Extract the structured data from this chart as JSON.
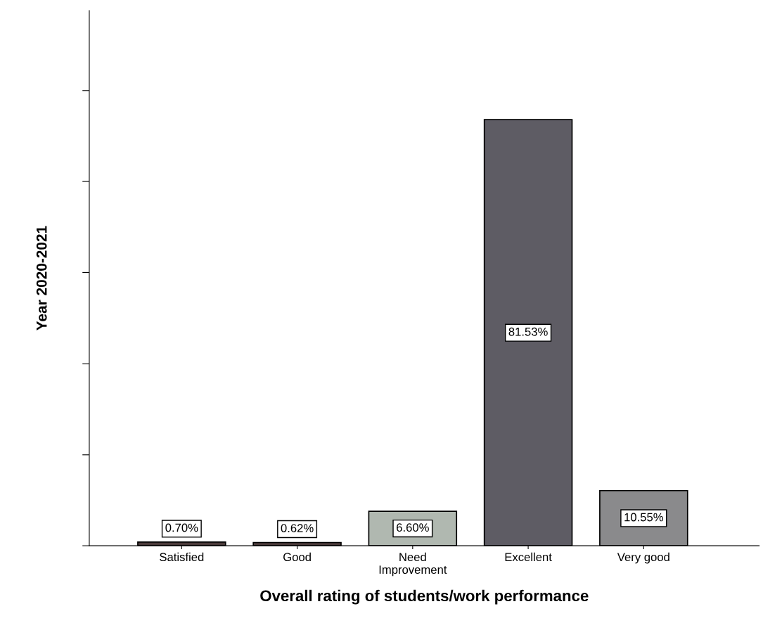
{
  "chart_data": {
    "type": "bar",
    "xlabel": "Overall rating of students/work performance",
    "ylabel": "Year 2020-2021",
    "categories": [
      "Satisfied",
      "Good",
      "Need\nImprovement",
      "Excellent",
      "Very good"
    ],
    "values": [
      0.7,
      0.62,
      6.6,
      81.53,
      10.55
    ],
    "value_labels": [
      "0.70%",
      "0.62%",
      "6.60%",
      "81.53%",
      "10.55%"
    ],
    "colors": [
      "#4a3a3a",
      "#4a3a3a",
      "#b0b8b0",
      "#5e5c64",
      "#8a8a8c"
    ],
    "ylim": [
      0,
      102.4
    ],
    "yticks": [
      {
        "value": 0,
        "label": null
      },
      {
        "value": 17.4,
        "label": null
      },
      {
        "value": 34.8,
        "label": null
      },
      {
        "value": 52.3,
        "label": null
      },
      {
        "value": 69.7,
        "label": null
      },
      {
        "value": 87.1,
        "label": null
      }
    ],
    "grid": false
  }
}
